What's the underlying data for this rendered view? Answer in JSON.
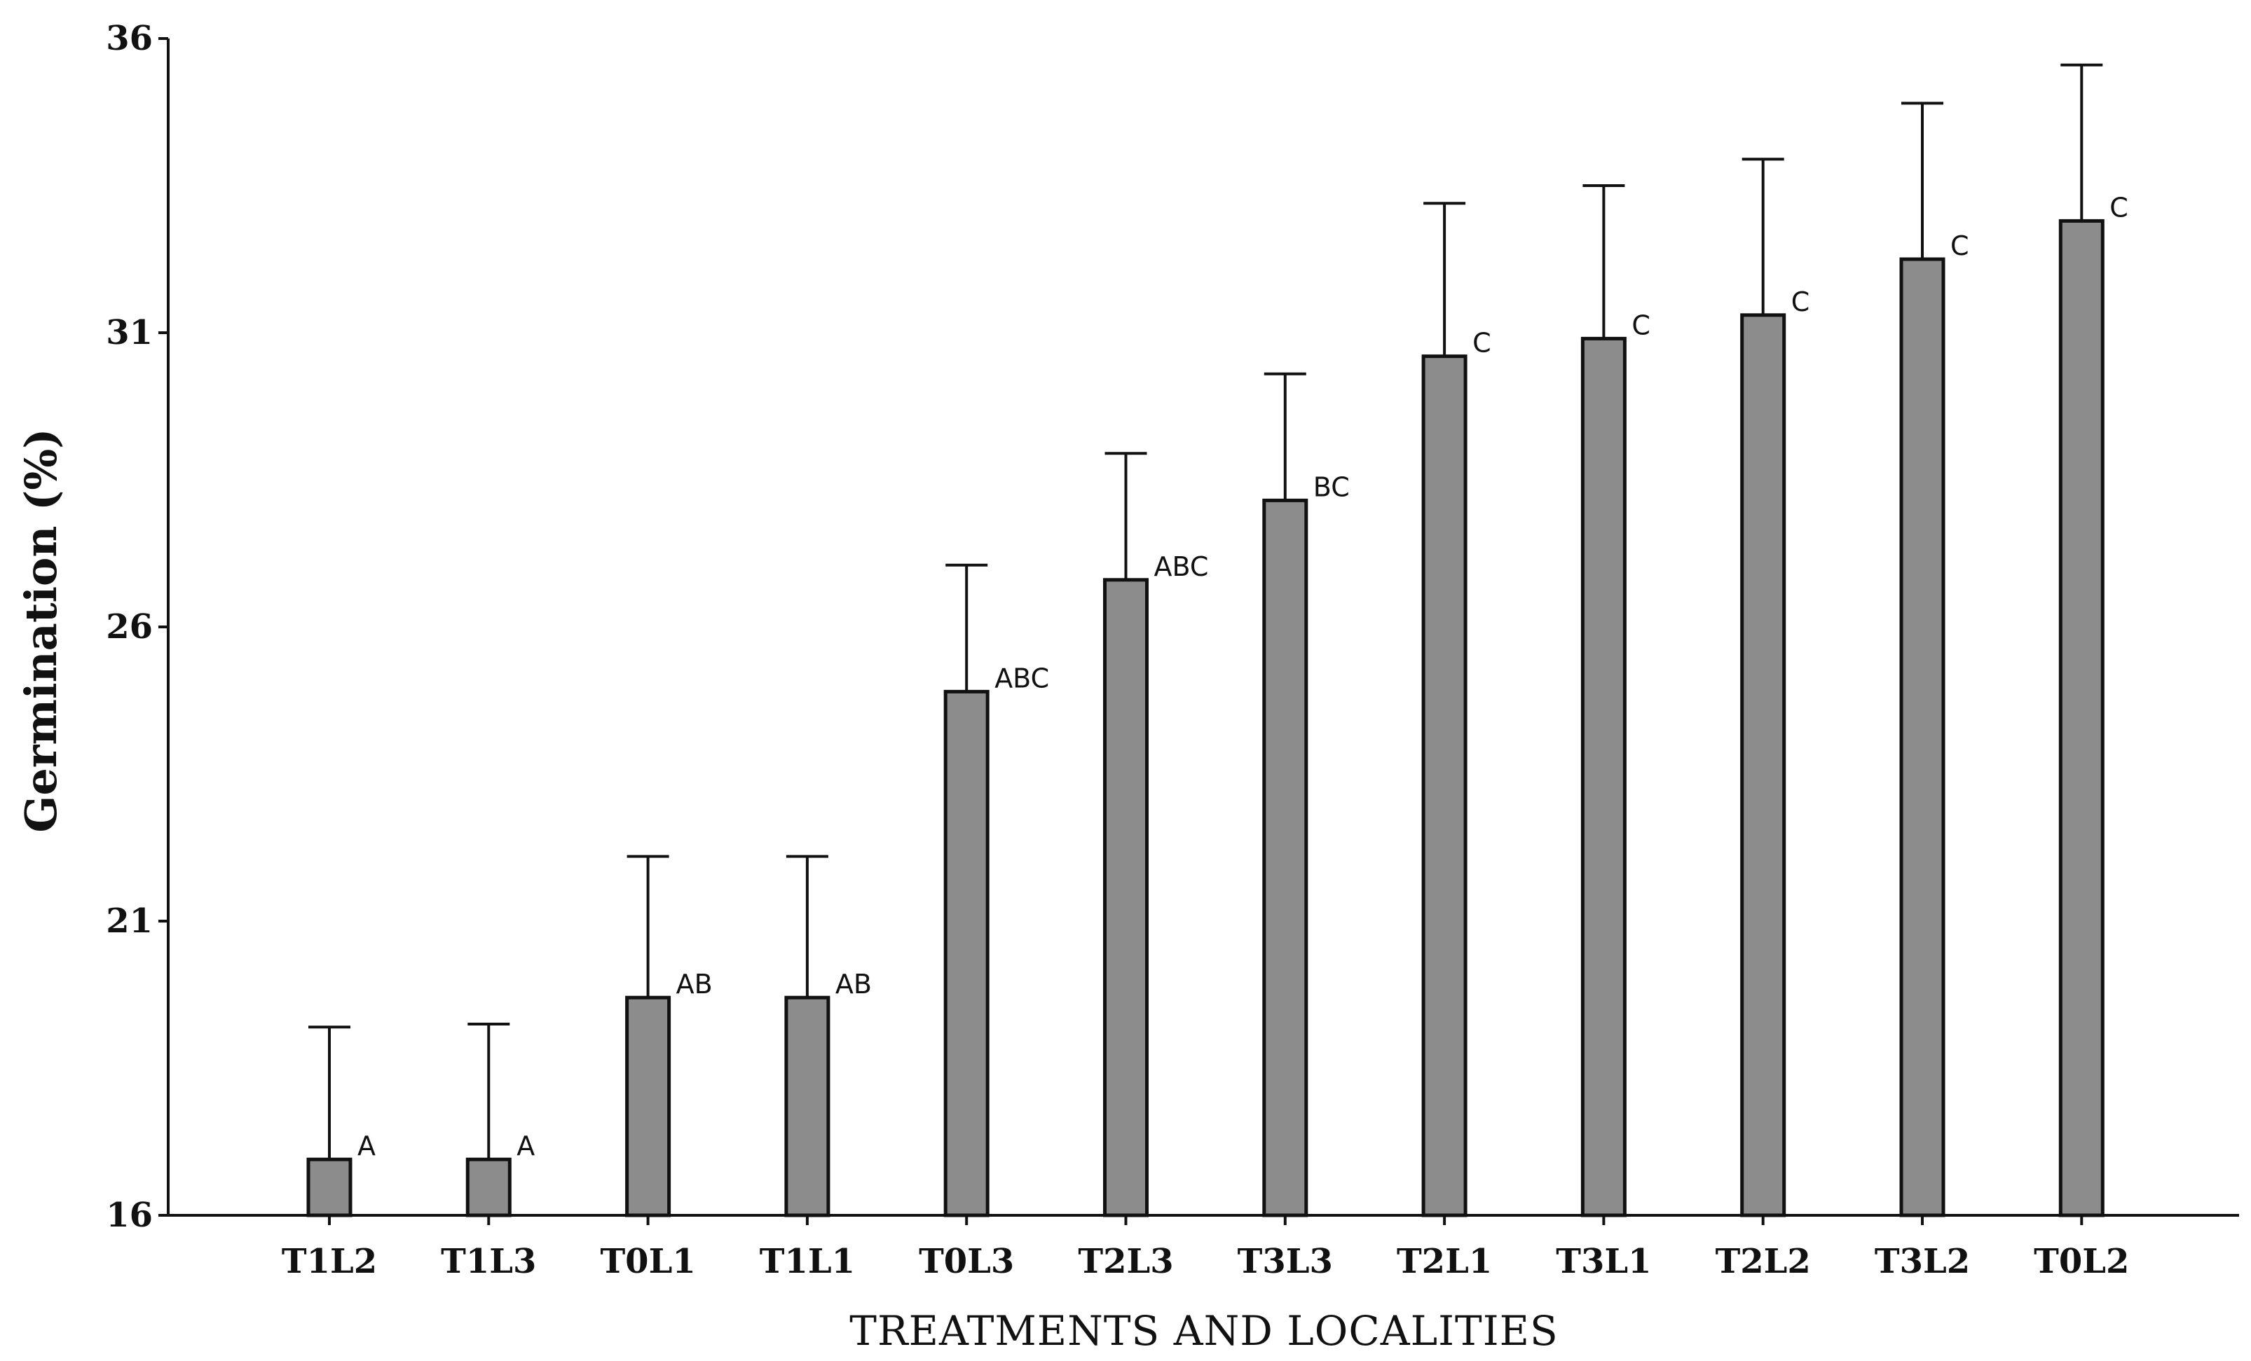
{
  "chart_data": {
    "type": "bar",
    "title": "",
    "xlabel": "TREATMENTS AND LOCALITIES",
    "ylabel": "Germination (%)",
    "ylim": [
      16,
      36
    ],
    "yticks": [
      "16",
      "21",
      "26",
      "31",
      "36"
    ],
    "grid": false,
    "categories": [
      "T1L2",
      "T1L3",
      "T0L1",
      "T1L1",
      "T0L3",
      "T2L3",
      "T3L3",
      "T2L1",
      "T3L1",
      "T2L2",
      "T3L2",
      "T0L2"
    ],
    "values": [
      16.95,
      16.95,
      19.7,
      19.7,
      24.9,
      26.8,
      28.15,
      30.6,
      30.9,
      31.3,
      32.25,
      32.9
    ],
    "error_upper": [
      19.2,
      19.25,
      22.1,
      22.1,
      27.05,
      28.95,
      30.3,
      33.2,
      33.5,
      33.95,
      34.9,
      35.55
    ],
    "significance": [
      "A",
      "A",
      "AB",
      "AB",
      "ABC",
      "ABC",
      "BC",
      "C",
      "C",
      "C",
      "C",
      "C"
    ]
  }
}
